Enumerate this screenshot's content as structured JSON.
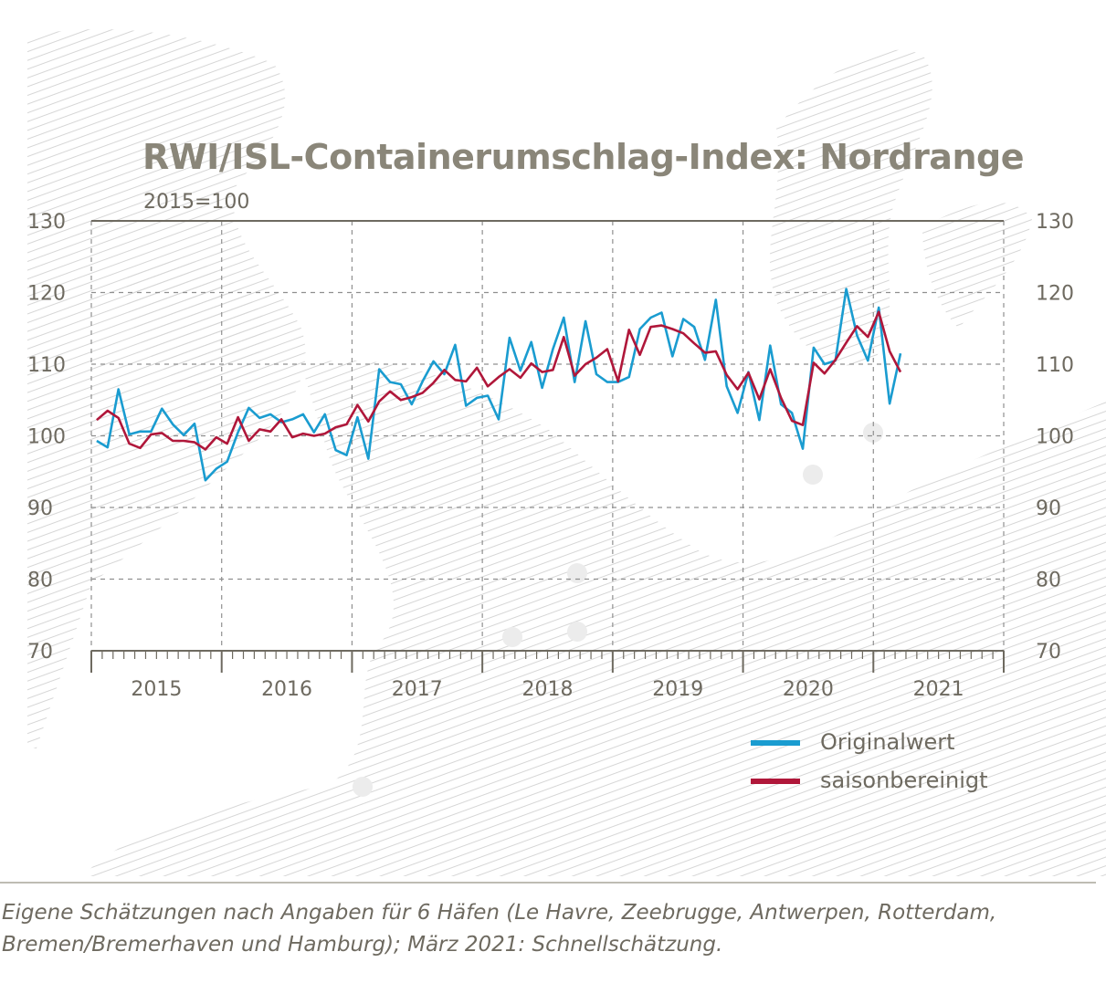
{
  "chart_data": {
    "type": "line",
    "title": "RWI/ISL-Containerumschlag-Index: Nordrange",
    "subtitle": "2015=100",
    "ylim": [
      70,
      130
    ],
    "yticks": [
      "70",
      "80",
      "90",
      "100",
      "110",
      "120",
      "130"
    ],
    "x_start": "2015-01",
    "xlim_months": [
      0,
      84
    ],
    "year_labels": [
      "2015",
      "2016",
      "2017",
      "2018",
      "2019",
      "2020",
      "2021"
    ],
    "grid": true,
    "legend_position": "bottom-right",
    "series": [
      {
        "name": "Originalwert",
        "color": "#1a9cd0",
        "values": [
          99.3,
          98.4,
          106.5,
          100.2,
          100.6,
          100.6,
          103.8,
          101.6,
          100.1,
          101.7,
          93.8,
          95.4,
          96.4,
          100.5,
          103.9,
          102.5,
          103.0,
          101.9,
          102.3,
          103.0,
          100.5,
          103.0,
          98.0,
          97.3,
          102.6,
          96.8,
          109.3,
          107.5,
          107.2,
          104.4,
          107.6,
          110.4,
          108.6,
          112.7,
          104.2,
          105.3,
          105.6,
          102.3,
          113.7,
          109.1,
          113.1,
          106.7,
          112.1,
          116.5,
          107.5,
          116.0,
          108.6,
          107.5,
          107.5,
          108.2,
          114.9,
          116.5,
          117.2,
          111.1,
          116.3,
          115.2,
          110.6,
          119.0,
          106.9,
          103.2,
          108.9,
          102.2,
          112.6,
          104.4,
          103.2,
          98.2,
          112.3,
          110.0,
          110.5,
          120.5,
          114.0,
          110.5,
          117.9,
          104.5,
          111.5
        ],
        "last_value_estimate": "Schnellschätzung"
      },
      {
        "name": "saisonbereinigt",
        "color": "#b0173a",
        "values": [
          102.2,
          103.5,
          102.5,
          98.9,
          98.3,
          100.2,
          100.4,
          99.3,
          99.3,
          99.1,
          98.1,
          99.8,
          98.9,
          102.6,
          99.3,
          100.9,
          100.6,
          102.3,
          99.8,
          100.3,
          100.0,
          100.3,
          101.2,
          101.6,
          104.3,
          102.0,
          104.8,
          106.2,
          105.0,
          105.4,
          106.0,
          107.4,
          109.2,
          107.8,
          107.6,
          109.5,
          106.9,
          108.2,
          109.3,
          108.1,
          110.1,
          108.9,
          109.2,
          113.8,
          108.4,
          110.0,
          110.9,
          112.1,
          107.6,
          114.8,
          111.3,
          115.2,
          115.4,
          114.9,
          114.3,
          112.9,
          111.6,
          111.8,
          108.5,
          106.5,
          108.8,
          105.1,
          109.3,
          105.3,
          102.1,
          101.5,
          110.2,
          108.7,
          110.6,
          113.0,
          115.3,
          113.8,
          117.3,
          111.8,
          108.9
        ]
      }
    ]
  },
  "note_line1": "Eigene Schätzungen nach Angaben für 6 Häfen (Le Havre, Zeebrugge, Antwerpen, Rotterdam,",
  "note_line2": "Bremen/Bremerhaven und Hamburg); März 2021: Schnellschätzung.",
  "colors": {
    "text": "#6e6a60",
    "title": "#8a8679",
    "grid": "#888888",
    "hatch": "#d2d2d2"
  }
}
